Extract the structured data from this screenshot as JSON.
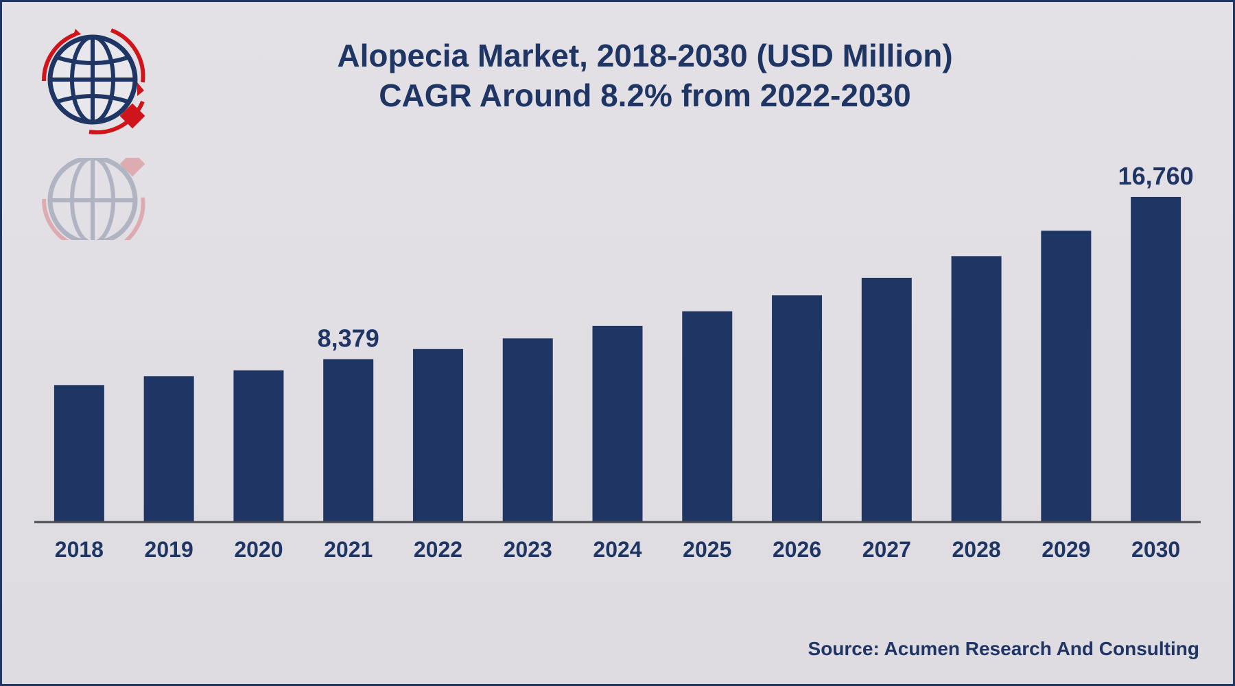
{
  "title": {
    "line1": "Alopecia Market, 2018-2030 (USD Million)",
    "line2": "CAGR Around 8.2% from 2022-2030"
  },
  "source": "Source: Acumen Research And Consulting",
  "colors": {
    "bar": "#1f3564",
    "text": "#1f3564",
    "logo_red": "#d0141b",
    "background": "#dfdde1"
  },
  "logo": {
    "icon": "globe-logo-icon"
  },
  "chart_data": {
    "type": "bar",
    "categories": [
      "2018",
      "2019",
      "2020",
      "2021",
      "2022",
      "2023",
      "2024",
      "2025",
      "2026",
      "2027",
      "2028",
      "2029",
      "2030"
    ],
    "values": [
      7040,
      7500,
      7800,
      8379,
      8900,
      9450,
      10100,
      10850,
      11680,
      12580,
      13700,
      15010,
      16760
    ],
    "data_labels": [
      {
        "category": "2021",
        "text": "8,379"
      },
      {
        "category": "2030",
        "text": "16,760"
      }
    ],
    "ylim": [
      0,
      16760
    ],
    "grid": false,
    "legend": "none",
    "xlabel": "",
    "ylabel": ""
  }
}
